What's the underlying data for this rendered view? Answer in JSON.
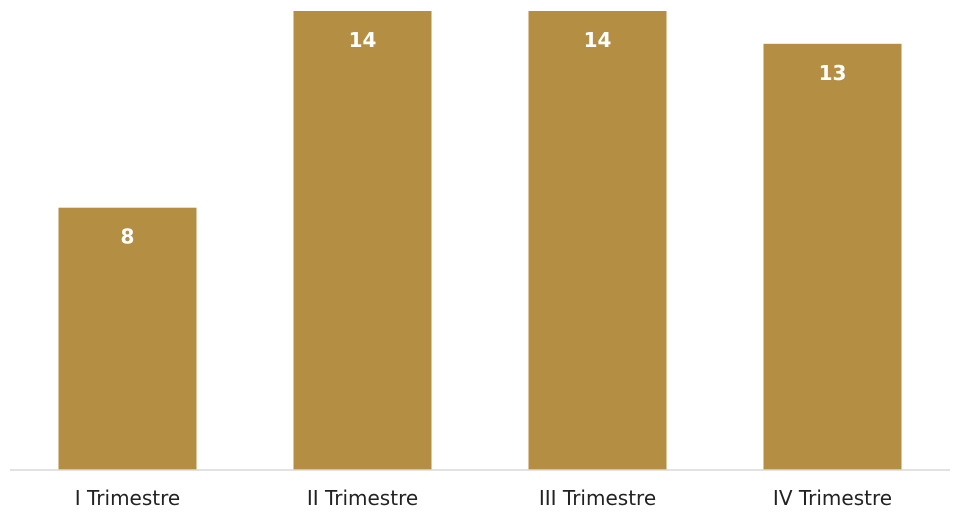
{
  "chart_data": {
    "type": "bar",
    "categories": [
      "I Trimestre",
      "II Trimestre",
      "III Trimestre",
      "IV Trimestre"
    ],
    "values": [
      8,
      14,
      14,
      13
    ],
    "data_labels": [
      "8",
      "14",
      "14",
      "13"
    ],
    "title": "",
    "xlabel": "",
    "ylabel": "",
    "ylim": [
      0,
      14
    ],
    "grid": false,
    "legend": "none",
    "bar_color": "#B38E43",
    "axis_color": "#D9D9D9",
    "value_label_color": "#FFFFFF"
  }
}
